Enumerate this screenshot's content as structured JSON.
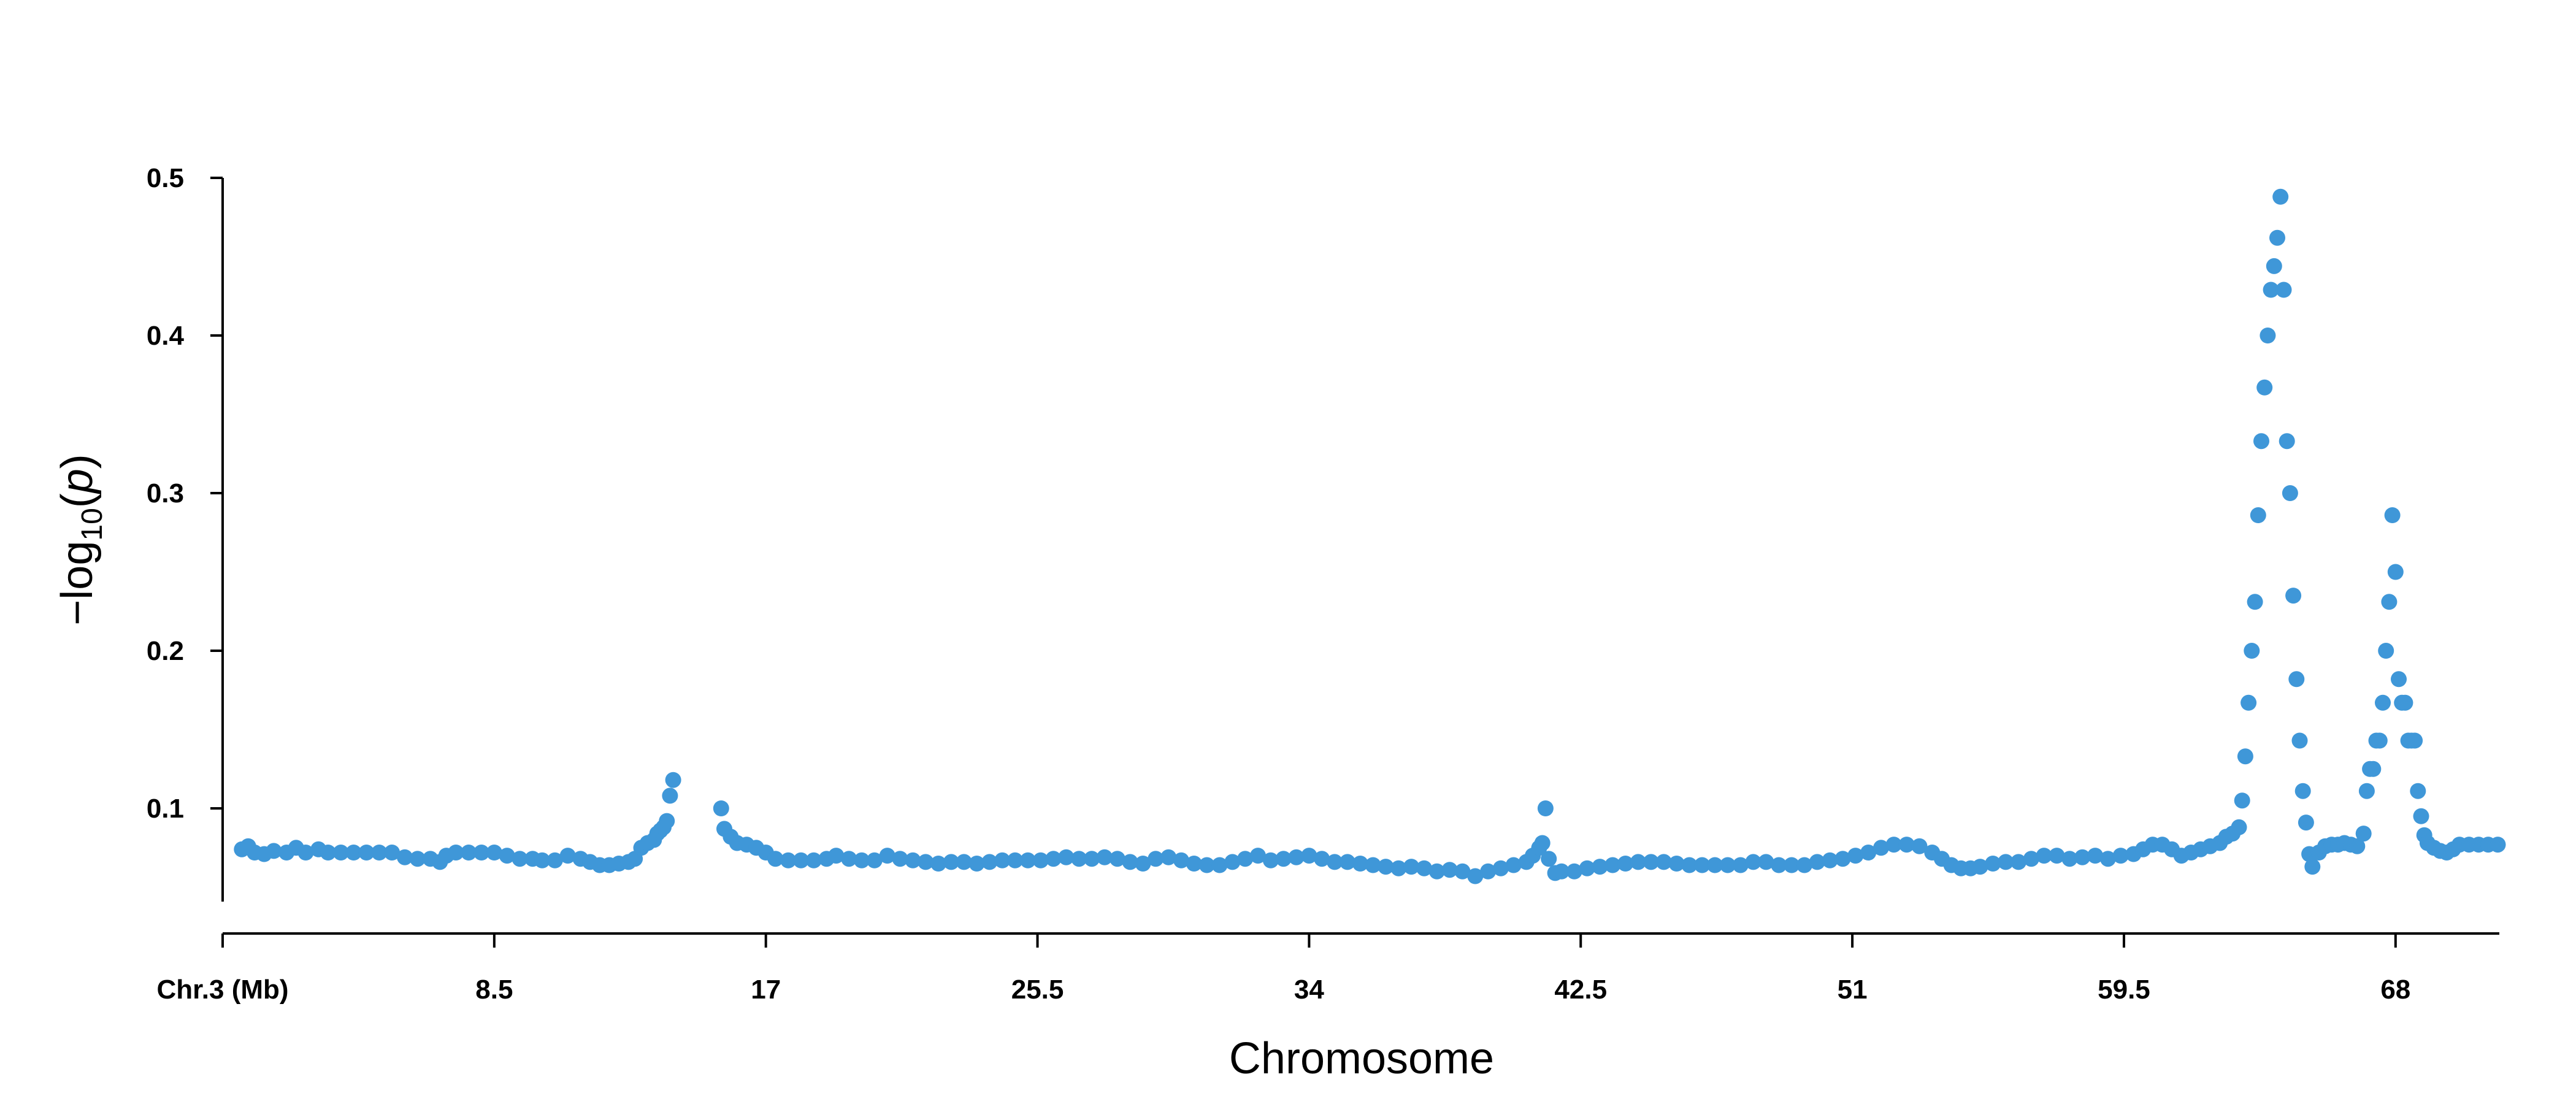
{
  "chart_data": {
    "type": "scatter",
    "xlabel": "Chromosome",
    "ylabel": {
      "prefix": "−log",
      "subscript": "10",
      "open": "(",
      "italic": "p",
      "close": ")"
    },
    "xlim": [
      0,
      71
    ],
    "ylim": [
      0.05,
      0.5
    ],
    "x_ticks": [
      {
        "value": 0,
        "label": "Chr.3 (Mb)"
      },
      {
        "value": 8.5,
        "label": "8.5"
      },
      {
        "value": 17,
        "label": "17"
      },
      {
        "value": 25.5,
        "label": "25.5"
      },
      {
        "value": 34,
        "label": "34"
      },
      {
        "value": 42.5,
        "label": "42.5"
      },
      {
        "value": 51,
        "label": "51"
      },
      {
        "value": 59.5,
        "label": "59.5"
      },
      {
        "value": 68,
        "label": "68"
      }
    ],
    "y_ticks": [
      {
        "value": 0.1,
        "label": "0.1"
      },
      {
        "value": 0.2,
        "label": "0.2"
      },
      {
        "value": 0.3,
        "label": "0.3"
      },
      {
        "value": 0.4,
        "label": "0.4"
      },
      {
        "value": 0.5,
        "label": "0.5"
      }
    ],
    "grid": false,
    "series": [
      {
        "color": "#3f97d8",
        "points": [
          [
            0.6,
            0.074
          ],
          [
            0.8,
            0.076
          ],
          [
            1.0,
            0.072
          ],
          [
            1.3,
            0.071
          ],
          [
            1.6,
            0.073
          ],
          [
            2.0,
            0.072
          ],
          [
            2.3,
            0.075
          ],
          [
            2.6,
            0.072
          ],
          [
            3.0,
            0.074
          ],
          [
            3.3,
            0.072
          ],
          [
            3.7,
            0.072
          ],
          [
            4.1,
            0.072
          ],
          [
            4.5,
            0.072
          ],
          [
            4.9,
            0.072
          ],
          [
            5.3,
            0.072
          ],
          [
            5.7,
            0.069
          ],
          [
            6.1,
            0.068
          ],
          [
            6.5,
            0.068
          ],
          [
            6.8,
            0.066
          ],
          [
            7.0,
            0.07
          ],
          [
            7.3,
            0.072
          ],
          [
            7.7,
            0.072
          ],
          [
            8.1,
            0.072
          ],
          [
            8.5,
            0.072
          ],
          [
            8.9,
            0.07
          ],
          [
            9.3,
            0.068
          ],
          [
            9.7,
            0.068
          ],
          [
            10.0,
            0.067
          ],
          [
            10.4,
            0.067
          ],
          [
            10.8,
            0.07
          ],
          [
            11.2,
            0.068
          ],
          [
            11.5,
            0.066
          ],
          [
            11.8,
            0.064
          ],
          [
            12.1,
            0.064
          ],
          [
            12.4,
            0.065
          ],
          [
            12.7,
            0.066
          ],
          [
            12.9,
            0.068
          ],
          [
            13.1,
            0.075
          ],
          [
            13.3,
            0.078
          ],
          [
            13.5,
            0.08
          ],
          [
            13.6,
            0.084
          ],
          [
            13.7,
            0.086
          ],
          [
            13.8,
            0.088
          ],
          [
            13.9,
            0.092
          ],
          [
            14.0,
            0.108
          ],
          [
            14.1,
            0.118
          ],
          [
            15.6,
            0.1
          ],
          [
            15.7,
            0.087
          ],
          [
            15.9,
            0.082
          ],
          [
            16.1,
            0.078
          ],
          [
            16.4,
            0.077
          ],
          [
            16.7,
            0.075
          ],
          [
            17.0,
            0.072
          ],
          [
            17.3,
            0.068
          ],
          [
            17.7,
            0.067
          ],
          [
            18.1,
            0.067
          ],
          [
            18.5,
            0.067
          ],
          [
            18.9,
            0.068
          ],
          [
            19.2,
            0.07
          ],
          [
            19.6,
            0.068
          ],
          [
            20.0,
            0.067
          ],
          [
            20.4,
            0.067
          ],
          [
            20.8,
            0.07
          ],
          [
            21.2,
            0.068
          ],
          [
            21.6,
            0.067
          ],
          [
            22.0,
            0.066
          ],
          [
            22.4,
            0.065
          ],
          [
            22.8,
            0.066
          ],
          [
            23.2,
            0.066
          ],
          [
            23.6,
            0.065
          ],
          [
            24.0,
            0.066
          ],
          [
            24.4,
            0.067
          ],
          [
            24.8,
            0.067
          ],
          [
            25.2,
            0.067
          ],
          [
            25.6,
            0.067
          ],
          [
            26.0,
            0.068
          ],
          [
            26.4,
            0.069
          ],
          [
            26.8,
            0.068
          ],
          [
            27.2,
            0.068
          ],
          [
            27.6,
            0.069
          ],
          [
            28.0,
            0.068
          ],
          [
            28.4,
            0.066
          ],
          [
            28.8,
            0.065
          ],
          [
            29.2,
            0.068
          ],
          [
            29.6,
            0.069
          ],
          [
            30.0,
            0.067
          ],
          [
            30.4,
            0.065
          ],
          [
            30.8,
            0.064
          ],
          [
            31.2,
            0.064
          ],
          [
            31.6,
            0.066
          ],
          [
            32.0,
            0.068
          ],
          [
            32.4,
            0.07
          ],
          [
            32.8,
            0.067
          ],
          [
            33.2,
            0.068
          ],
          [
            33.6,
            0.069
          ],
          [
            34.0,
            0.07
          ],
          [
            34.4,
            0.068
          ],
          [
            34.8,
            0.066
          ],
          [
            35.2,
            0.066
          ],
          [
            35.6,
            0.065
          ],
          [
            36.0,
            0.064
          ],
          [
            36.4,
            0.063
          ],
          [
            36.8,
            0.062
          ],
          [
            37.2,
            0.063
          ],
          [
            37.6,
            0.062
          ],
          [
            38.0,
            0.06
          ],
          [
            38.4,
            0.061
          ],
          [
            38.8,
            0.06
          ],
          [
            39.2,
            0.057
          ],
          [
            39.6,
            0.06
          ],
          [
            40.0,
            0.062
          ],
          [
            40.4,
            0.064
          ],
          [
            40.8,
            0.066
          ],
          [
            41.0,
            0.07
          ],
          [
            41.2,
            0.075
          ],
          [
            41.3,
            0.078
          ],
          [
            41.4,
            0.1
          ],
          [
            41.5,
            0.068
          ],
          [
            41.7,
            0.059
          ],
          [
            41.9,
            0.06
          ],
          [
            42.3,
            0.06
          ],
          [
            42.7,
            0.062
          ],
          [
            43.1,
            0.063
          ],
          [
            43.5,
            0.064
          ],
          [
            43.9,
            0.065
          ],
          [
            44.3,
            0.066
          ],
          [
            44.7,
            0.066
          ],
          [
            45.1,
            0.066
          ],
          [
            45.5,
            0.065
          ],
          [
            45.9,
            0.064
          ],
          [
            46.3,
            0.064
          ],
          [
            46.7,
            0.064
          ],
          [
            47.1,
            0.064
          ],
          [
            47.5,
            0.064
          ],
          [
            47.9,
            0.066
          ],
          [
            48.3,
            0.066
          ],
          [
            48.7,
            0.064
          ],
          [
            49.1,
            0.064
          ],
          [
            49.5,
            0.064
          ],
          [
            49.9,
            0.066
          ],
          [
            50.3,
            0.067
          ],
          [
            50.7,
            0.068
          ],
          [
            51.1,
            0.07
          ],
          [
            51.5,
            0.072
          ],
          [
            51.9,
            0.075
          ],
          [
            52.3,
            0.077
          ],
          [
            52.7,
            0.077
          ],
          [
            53.1,
            0.076
          ],
          [
            53.5,
            0.072
          ],
          [
            53.8,
            0.068
          ],
          [
            54.1,
            0.064
          ],
          [
            54.4,
            0.062
          ],
          [
            54.7,
            0.062
          ],
          [
            55.0,
            0.063
          ],
          [
            55.4,
            0.065
          ],
          [
            55.8,
            0.066
          ],
          [
            56.2,
            0.066
          ],
          [
            56.6,
            0.068
          ],
          [
            57.0,
            0.07
          ],
          [
            57.4,
            0.07
          ],
          [
            57.8,
            0.068
          ],
          [
            58.2,
            0.069
          ],
          [
            58.6,
            0.07
          ],
          [
            59.0,
            0.068
          ],
          [
            59.4,
            0.07
          ],
          [
            59.8,
            0.071
          ],
          [
            60.1,
            0.074
          ],
          [
            60.4,
            0.077
          ],
          [
            60.7,
            0.077
          ],
          [
            61.0,
            0.074
          ],
          [
            61.3,
            0.07
          ],
          [
            61.6,
            0.072
          ],
          [
            61.9,
            0.074
          ],
          [
            62.2,
            0.076
          ],
          [
            62.5,
            0.078
          ],
          [
            62.7,
            0.082
          ],
          [
            62.9,
            0.084
          ],
          [
            63.1,
            0.088
          ],
          [
            63.2,
            0.105
          ],
          [
            63.3,
            0.133
          ],
          [
            63.4,
            0.167
          ],
          [
            63.5,
            0.2
          ],
          [
            63.6,
            0.231
          ],
          [
            63.7,
            0.286
          ],
          [
            63.8,
            0.333
          ],
          [
            63.9,
            0.367
          ],
          [
            64.0,
            0.4
          ],
          [
            64.1,
            0.429
          ],
          [
            64.2,
            0.444
          ],
          [
            64.3,
            0.462
          ],
          [
            64.4,
            0.488
          ],
          [
            64.5,
            0.429
          ],
          [
            64.6,
            0.333
          ],
          [
            64.7,
            0.3
          ],
          [
            64.8,
            0.235
          ],
          [
            64.9,
            0.182
          ],
          [
            65.0,
            0.143
          ],
          [
            65.1,
            0.111
          ],
          [
            65.2,
            0.091
          ],
          [
            65.3,
            0.071
          ],
          [
            65.4,
            0.063
          ],
          [
            65.6,
            0.072
          ],
          [
            65.8,
            0.076
          ],
          [
            66.0,
            0.077
          ],
          [
            66.2,
            0.077
          ],
          [
            66.4,
            0.078
          ],
          [
            66.6,
            0.077
          ],
          [
            66.8,
            0.076
          ],
          [
            67.0,
            0.084
          ],
          [
            67.1,
            0.111
          ],
          [
            67.2,
            0.125
          ],
          [
            67.3,
            0.125
          ],
          [
            67.4,
            0.143
          ],
          [
            67.5,
            0.143
          ],
          [
            67.6,
            0.167
          ],
          [
            67.7,
            0.2
          ],
          [
            67.8,
            0.231
          ],
          [
            67.9,
            0.286
          ],
          [
            68.0,
            0.25
          ],
          [
            68.1,
            0.182
          ],
          [
            68.2,
            0.167
          ],
          [
            68.3,
            0.167
          ],
          [
            68.4,
            0.143
          ],
          [
            68.5,
            0.143
          ],
          [
            68.6,
            0.143
          ],
          [
            68.7,
            0.111
          ],
          [
            68.8,
            0.095
          ],
          [
            68.9,
            0.083
          ],
          [
            69.0,
            0.078
          ],
          [
            69.2,
            0.075
          ],
          [
            69.4,
            0.073
          ],
          [
            69.6,
            0.072
          ],
          [
            69.8,
            0.074
          ],
          [
            70.0,
            0.077
          ],
          [
            70.3,
            0.077
          ],
          [
            70.6,
            0.077
          ],
          [
            70.9,
            0.077
          ],
          [
            71.2,
            0.077
          ]
        ]
      }
    ]
  }
}
